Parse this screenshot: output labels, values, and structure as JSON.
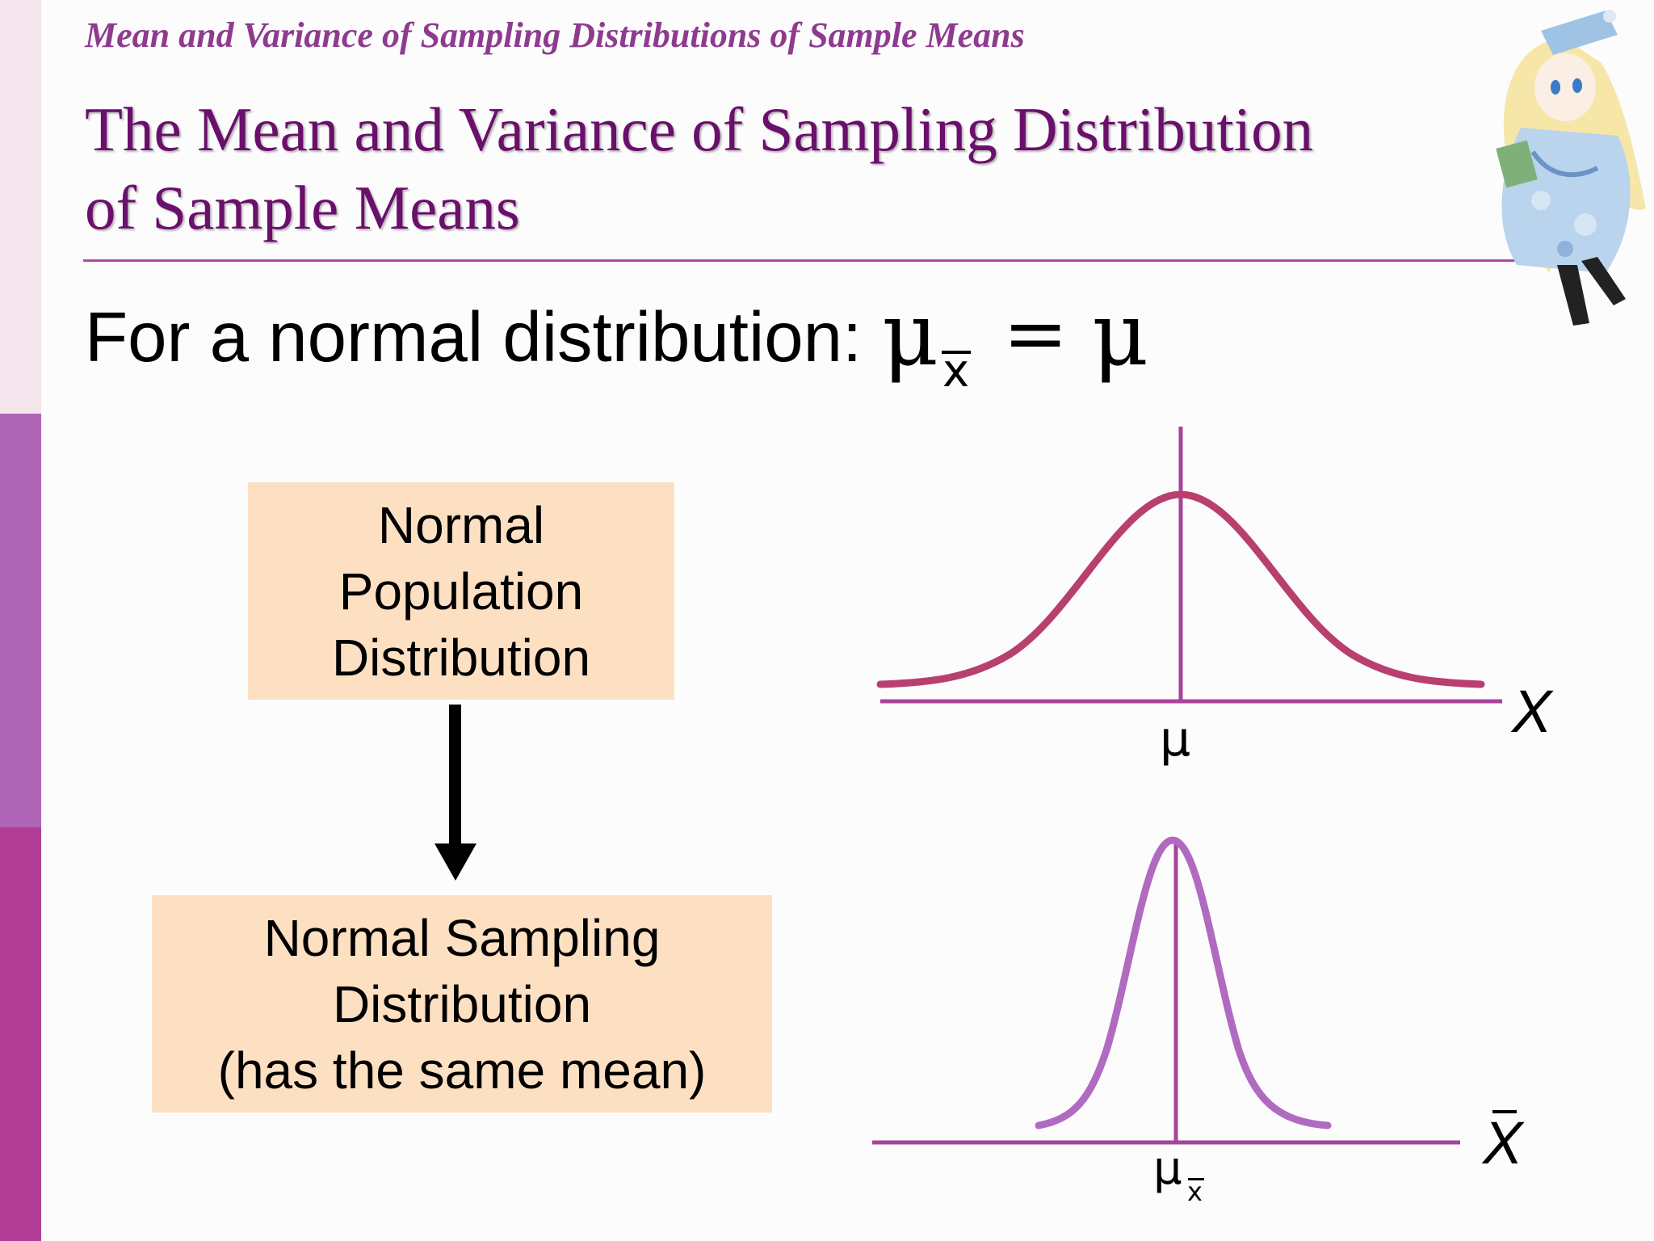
{
  "header": {
    "subtitle": "Mean and Variance of Sampling Distributions of Sample Means",
    "title_line1": "The Mean and Variance of Sampling Distribution",
    "title_line2": "of Sample Means"
  },
  "statement": {
    "text": "For a normal distribution:",
    "formula_mu": "μ",
    "formula_sub": "x",
    "formula_eq": "=",
    "formula_rhs": "μ"
  },
  "boxes": {
    "population_line1": "Normal",
    "population_line2": "Population",
    "population_line3": "Distribution",
    "sampling_line1": "Normal Sampling",
    "sampling_line2": "Distribution",
    "sampling_line3": "(has the same mean)"
  },
  "charts": {
    "population_axis_label": "X",
    "population_tick": "μ",
    "sampling_axis_label": "X",
    "sampling_tick": "μ",
    "sampling_tick_sub": "x"
  },
  "colors": {
    "sidebar_top": "#f4e6ec",
    "sidebar_mid": "#ae65b6",
    "sidebar_bottom": "#b03c93",
    "title_color": "#6a0f6b",
    "population_curve": "#b8406f",
    "sampling_curve": "#b06ac0",
    "axis": "#a8449a",
    "box_fill": "#fde0c2"
  }
}
